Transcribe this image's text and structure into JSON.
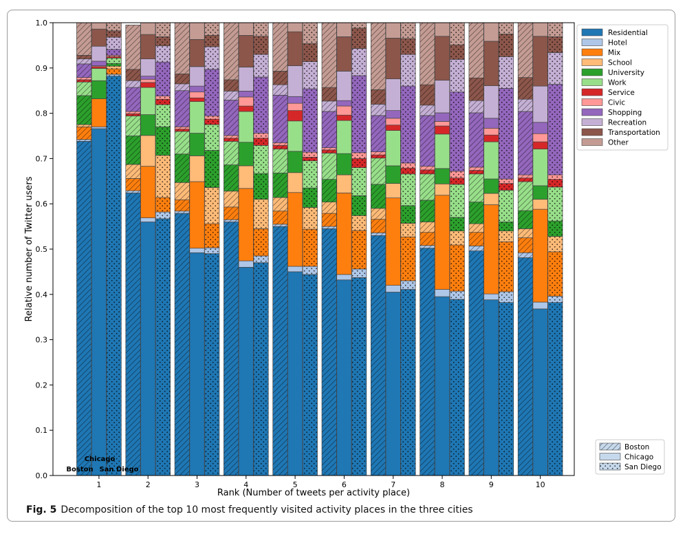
{
  "caption": {
    "label": "Fig. 5",
    "text": "Decomposition of the top 10 most frequently visited activity places in the three cities"
  },
  "chart_data": {
    "type": "bar",
    "stacked": true,
    "xlabel": "Rank (Number of tweets per activity place)",
    "ylabel": "Relative number of Twitter users",
    "ylim": [
      0,
      1.0
    ],
    "yticks": [
      0.0,
      0.1,
      0.2,
      0.3,
      0.4,
      0.5,
      0.6,
      0.7,
      0.8,
      0.9,
      1.0
    ],
    "categories": [
      "1",
      "2",
      "3",
      "4",
      "5",
      "6",
      "7",
      "8",
      "9",
      "10"
    ],
    "cities": [
      {
        "name": "Boston",
        "pattern": "hatch"
      },
      {
        "name": "Chicago",
        "pattern": "solid"
      },
      {
        "name": "San Diego",
        "pattern": "dots"
      }
    ],
    "annotations": [
      "Boston",
      "Chicago",
      "San Diego"
    ],
    "legend_position": "top-right",
    "city_legend_position": "bottom-right",
    "colors": {
      "Residential": "#1f77b4",
      "Hotel": "#aec7e8",
      "Mix": "#ff7f0e",
      "School": "#ffbb78",
      "University": "#2ca02c",
      "Work": "#98df8a",
      "Service": "#d62728",
      "Civic": "#ff9896",
      "Shopping": "#9467bd",
      "Recreation": "#c5b0d5",
      "Transportation": "#8c564b",
      "Other": "#c49c94"
    },
    "series": [
      {
        "name": "Residential",
        "values": [
          [
            0.738,
            0.766,
            0.882
          ],
          [
            0.624,
            0.56,
            0.567
          ],
          [
            0.579,
            0.492,
            0.49
          ],
          [
            0.56,
            0.46,
            0.47
          ],
          [
            0.55,
            0.45,
            0.444
          ],
          [
            0.545,
            0.432,
            0.437
          ],
          [
            0.53,
            0.405,
            0.411
          ],
          [
            0.502,
            0.395,
            0.389
          ],
          [
            0.496,
            0.388,
            0.382
          ],
          [
            0.481,
            0.368,
            0.382
          ]
        ]
      },
      {
        "name": "Hotel",
        "values": [
          [
            0.004,
            0.004,
            0.004
          ],
          [
            0.005,
            0.009,
            0.015
          ],
          [
            0.005,
            0.01,
            0.013
          ],
          [
            0.005,
            0.014,
            0.015
          ],
          [
            0.005,
            0.012,
            0.018
          ],
          [
            0.005,
            0.012,
            0.019
          ],
          [
            0.006,
            0.015,
            0.019
          ],
          [
            0.006,
            0.016,
            0.018
          ],
          [
            0.011,
            0.013,
            0.024
          ],
          [
            0.011,
            0.015,
            0.014
          ]
        ]
      },
      {
        "name": "Mix",
        "values": [
          [
            0.028,
            0.062,
            0.012
          ],
          [
            0.027,
            0.114,
            0.032
          ],
          [
            0.025,
            0.147,
            0.053
          ],
          [
            0.028,
            0.16,
            0.06
          ],
          [
            0.029,
            0.163,
            0.082
          ],
          [
            0.029,
            0.18,
            0.085
          ],
          [
            0.03,
            0.193,
            0.097
          ],
          [
            0.029,
            0.208,
            0.102
          ],
          [
            0.03,
            0.197,
            0.11
          ],
          [
            0.033,
            0.205,
            0.098
          ]
        ]
      },
      {
        "name": "School",
        "values": [
          [
            0.005,
            0.0,
            0.006
          ],
          [
            0.031,
            0.068,
            0.093
          ],
          [
            0.038,
            0.057,
            0.08
          ],
          [
            0.035,
            0.05,
            0.065
          ],
          [
            0.03,
            0.044,
            0.048
          ],
          [
            0.025,
            0.04,
            0.033
          ],
          [
            0.024,
            0.032,
            0.03
          ],
          [
            0.023,
            0.025,
            0.031
          ],
          [
            0.019,
            0.025,
            0.024
          ],
          [
            0.02,
            0.022,
            0.034
          ]
        ]
      },
      {
        "name": "University",
        "values": [
          [
            0.064,
            0.04,
            0.006
          ],
          [
            0.063,
            0.046,
            0.063
          ],
          [
            0.063,
            0.05,
            0.082
          ],
          [
            0.058,
            0.052,
            0.057
          ],
          [
            0.054,
            0.047,
            0.043
          ],
          [
            0.05,
            0.047,
            0.044
          ],
          [
            0.053,
            0.039,
            0.039
          ],
          [
            0.048,
            0.034,
            0.03
          ],
          [
            0.048,
            0.032,
            0.02
          ],
          [
            0.04,
            0.03,
            0.034
          ]
        ]
      },
      {
        "name": "Work",
        "values": [
          [
            0.03,
            0.027,
            0.012
          ],
          [
            0.044,
            0.06,
            0.049
          ],
          [
            0.05,
            0.07,
            0.057
          ],
          [
            0.052,
            0.068,
            0.062
          ],
          [
            0.053,
            0.067,
            0.06
          ],
          [
            0.058,
            0.073,
            0.062
          ],
          [
            0.058,
            0.078,
            0.07
          ],
          [
            0.058,
            0.076,
            0.073
          ],
          [
            0.062,
            0.082,
            0.07
          ],
          [
            0.064,
            0.081,
            0.075
          ]
        ]
      },
      {
        "name": "Service",
        "values": [
          [
            0.005,
            0.004,
            0.003
          ],
          [
            0.005,
            0.011,
            0.012
          ],
          [
            0.005,
            0.008,
            0.012
          ],
          [
            0.007,
            0.012,
            0.016
          ],
          [
            0.008,
            0.023,
            0.008
          ],
          [
            0.007,
            0.012,
            0.02
          ],
          [
            0.007,
            0.012,
            0.013
          ],
          [
            0.009,
            0.018,
            0.014
          ],
          [
            0.008,
            0.015,
            0.015
          ],
          [
            0.008,
            0.016,
            0.017
          ]
        ]
      },
      {
        "name": "Civic",
        "values": [
          [
            0.005,
            0.002,
            0.003
          ],
          [
            0.005,
            0.007,
            0.007
          ],
          [
            0.005,
            0.013,
            0.007
          ],
          [
            0.006,
            0.02,
            0.011
          ],
          [
            0.006,
            0.016,
            0.011
          ],
          [
            0.005,
            0.02,
            0.013
          ],
          [
            0.007,
            0.015,
            0.011
          ],
          [
            0.008,
            0.01,
            0.015
          ],
          [
            0.007,
            0.015,
            0.01
          ],
          [
            0.007,
            0.018,
            0.01
          ]
        ]
      },
      {
        "name": "Shopping",
        "values": [
          [
            0.03,
            0.01,
            0.013
          ],
          [
            0.053,
            0.007,
            0.075
          ],
          [
            0.08,
            0.013,
            0.103
          ],
          [
            0.078,
            0.013,
            0.124
          ],
          [
            0.105,
            0.015,
            0.14
          ],
          [
            0.08,
            0.012,
            0.17
          ],
          [
            0.08,
            0.017,
            0.17
          ],
          [
            0.112,
            0.019,
            0.175
          ],
          [
            0.12,
            0.022,
            0.2
          ],
          [
            0.14,
            0.025,
            0.2
          ]
        ]
      },
      {
        "name": "Recreation",
        "values": [
          [
            0.011,
            0.033,
            0.027
          ],
          [
            0.015,
            0.038,
            0.036
          ],
          [
            0.015,
            0.043,
            0.05
          ],
          [
            0.02,
            0.053,
            0.05
          ],
          [
            0.023,
            0.068,
            0.06
          ],
          [
            0.023,
            0.065,
            0.06
          ],
          [
            0.025,
            0.07,
            0.07
          ],
          [
            0.023,
            0.072,
            0.072
          ],
          [
            0.027,
            0.072,
            0.07
          ],
          [
            0.027,
            0.08,
            0.07
          ]
        ]
      },
      {
        "name": "Transportation",
        "values": [
          [
            0.008,
            0.038,
            0.014
          ],
          [
            0.025,
            0.054,
            0.02
          ],
          [
            0.022,
            0.06,
            0.025
          ],
          [
            0.025,
            0.07,
            0.04
          ],
          [
            0.03,
            0.075,
            0.04
          ],
          [
            0.03,
            0.076,
            0.045
          ],
          [
            0.032,
            0.09,
            0.035
          ],
          [
            0.045,
            0.097,
            0.032
          ],
          [
            0.05,
            0.098,
            0.05
          ],
          [
            0.048,
            0.11,
            0.035
          ]
        ]
      },
      {
        "name": "Other",
        "values": [
          [
            0.072,
            0.014,
            0.018
          ],
          [
            0.098,
            0.026,
            0.031
          ],
          [
            0.113,
            0.037,
            0.028
          ],
          [
            0.126,
            0.028,
            0.03
          ],
          [
            0.107,
            0.02,
            0.046
          ],
          [
            0.143,
            0.031,
            0.012
          ],
          [
            0.148,
            0.034,
            0.035
          ],
          [
            0.137,
            0.03,
            0.049
          ],
          [
            0.122,
            0.041,
            0.025
          ],
          [
            0.121,
            0.03,
            0.031
          ]
        ]
      }
    ]
  }
}
